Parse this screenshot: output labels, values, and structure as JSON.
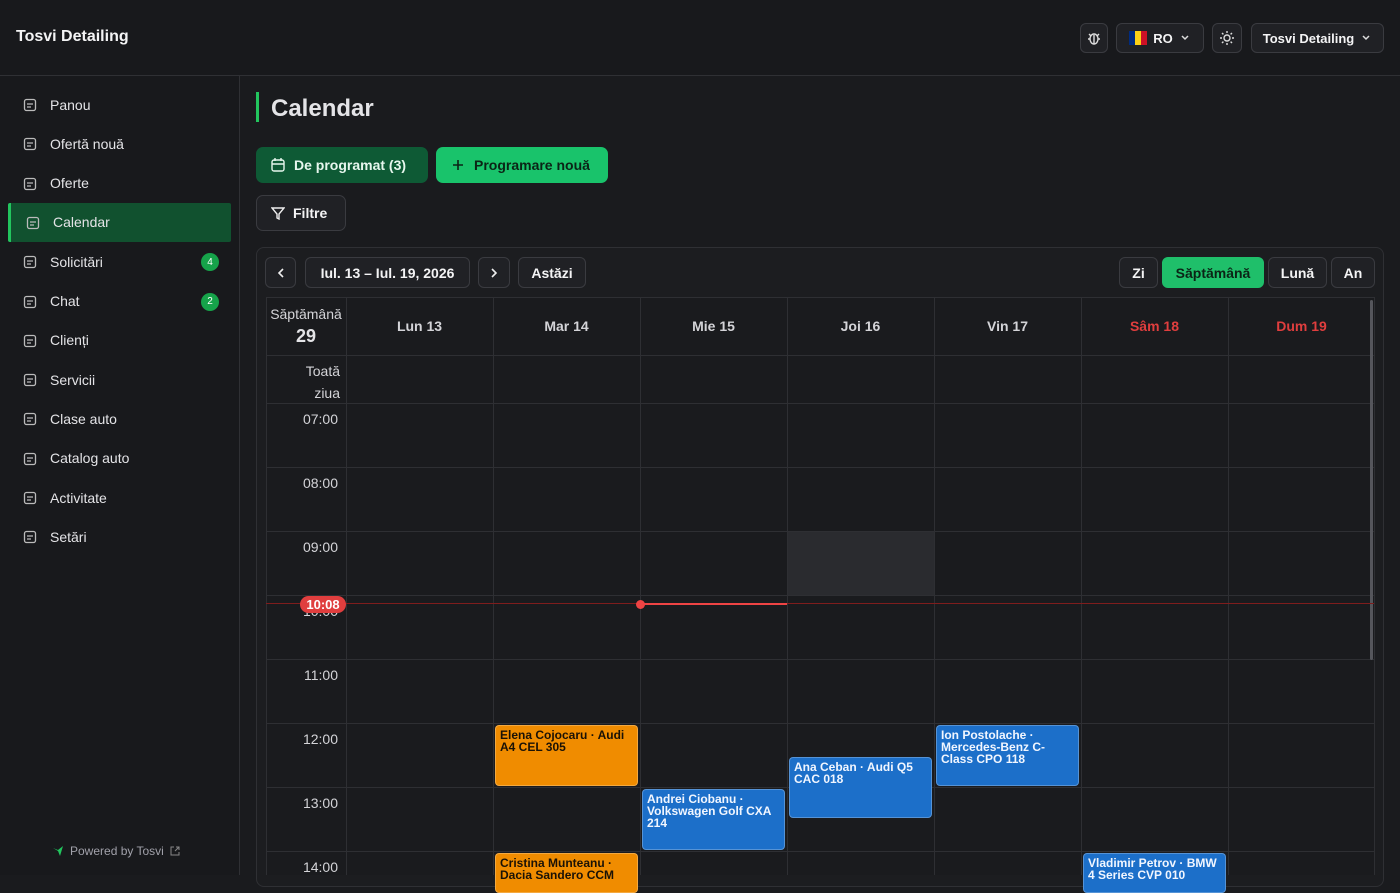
{
  "header": {
    "brand": "Tosvi Detailing",
    "language": "RO",
    "account": "Tosvi Detailing"
  },
  "sidebar": {
    "items": [
      {
        "label": "Panou"
      },
      {
        "label": "Ofertă nouă"
      },
      {
        "label": "Oferte"
      },
      {
        "label": "Calendar",
        "active": true
      },
      {
        "label": "Solicitări",
        "badge": 4
      },
      {
        "label": "Chat",
        "badge": 2
      },
      {
        "label": "Clienți"
      },
      {
        "label": "Servicii"
      },
      {
        "label": "Clase auto"
      },
      {
        "label": "Catalog auto"
      },
      {
        "label": "Activitate"
      },
      {
        "label": "Setări"
      }
    ],
    "footer": "Powered by Tosvi"
  },
  "page": {
    "title": "Calendar",
    "unscheduled_button": "De programat (3)",
    "new_button": "Programare nouă",
    "filters_button": "Filtre"
  },
  "toolbar": {
    "range": "Iul. 13 – Iul. 19, 2026",
    "today": "Astăzi",
    "views": [
      {
        "label": "Zi"
      },
      {
        "label": "Săptămână",
        "active": true
      },
      {
        "label": "Lună"
      },
      {
        "label": "An"
      }
    ]
  },
  "calendar": {
    "week_label": "Săptămână",
    "week_number": 29,
    "all_day": "Toată ziua",
    "days": [
      {
        "label": "Lun 13"
      },
      {
        "label": "Mar 14"
      },
      {
        "label": "Mie 15"
      },
      {
        "label": "Joi 16"
      },
      {
        "label": "Vin 17"
      },
      {
        "label": "Sâm 18",
        "weekend": true
      },
      {
        "label": "Dum 19",
        "weekend": true
      }
    ],
    "hours": [
      "07:00",
      "08:00",
      "09:00",
      "10:00",
      "11:00",
      "12:00",
      "13:00",
      "14:00"
    ],
    "now": "10:08",
    "events": [
      {
        "text": "Elena Cojocaru · Audi A4 CEL 305",
        "color": "#f08c00"
      },
      {
        "text": "Andrei Ciobanu · Volkswagen Golf CXA 214",
        "color": "#1c6fc9"
      },
      {
        "text": "Ana Ceban · Audi Q5 CAC 018",
        "color": "#1c6fc9"
      },
      {
        "text": "Ion Postolache · Mercedes-Benz C-Class CPO 118",
        "color": "#1c6fc9"
      },
      {
        "text": "Cristina Munteanu · Dacia Sandero CCM",
        "color": "#f08c00"
      },
      {
        "text": "Vladimir Petrov · BMW 4 Series CVP 010",
        "color": "#1c6fc9"
      }
    ]
  }
}
